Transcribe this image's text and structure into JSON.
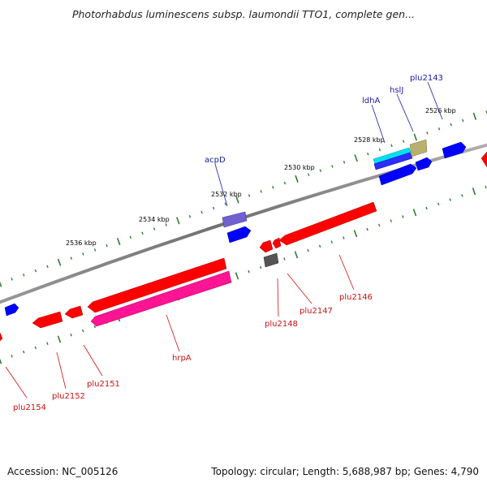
{
  "title": "Photorhabdus luminescens subsp. laumondii TTO1, complete gen...",
  "footer": {
    "accession": "Accession: NC_005126",
    "stats": "Topology: circular; Length: 5,688,987 bp; Genes: 4,790"
  },
  "colors": {
    "backbone": "#808080",
    "tick": "#2e7d32",
    "forward_label": "#1a1aa6",
    "reverse_label": "#cc1111",
    "red_gene": "#ff0000",
    "pink_gene": "#ff1493",
    "blue_gene": "#0000ff",
    "cyan_gene": "#00e0f0",
    "purple_gene": "#7060d0",
    "olive_gene": "#b8b070",
    "gray_gene": "#555555"
  },
  "scale_labels": [
    "2526 kbp",
    "2528 kbp",
    "2530 kbp",
    "2532 kbp",
    "2534 kbp",
    "2536 kbp"
  ],
  "gene_labels": {
    "forward": [
      "plu2143",
      "hslJ",
      "ldhA",
      "acpD"
    ],
    "reverse": [
      "plu2146",
      "plu2147",
      "plu2148",
      "hrpA",
      "plu2151",
      "plu2152",
      "plu2154"
    ]
  },
  "legend_icons": {
    "forward": [
      "blue-arrow-icon"
    ],
    "reverse": [
      "red-arrow-icon"
    ]
  }
}
